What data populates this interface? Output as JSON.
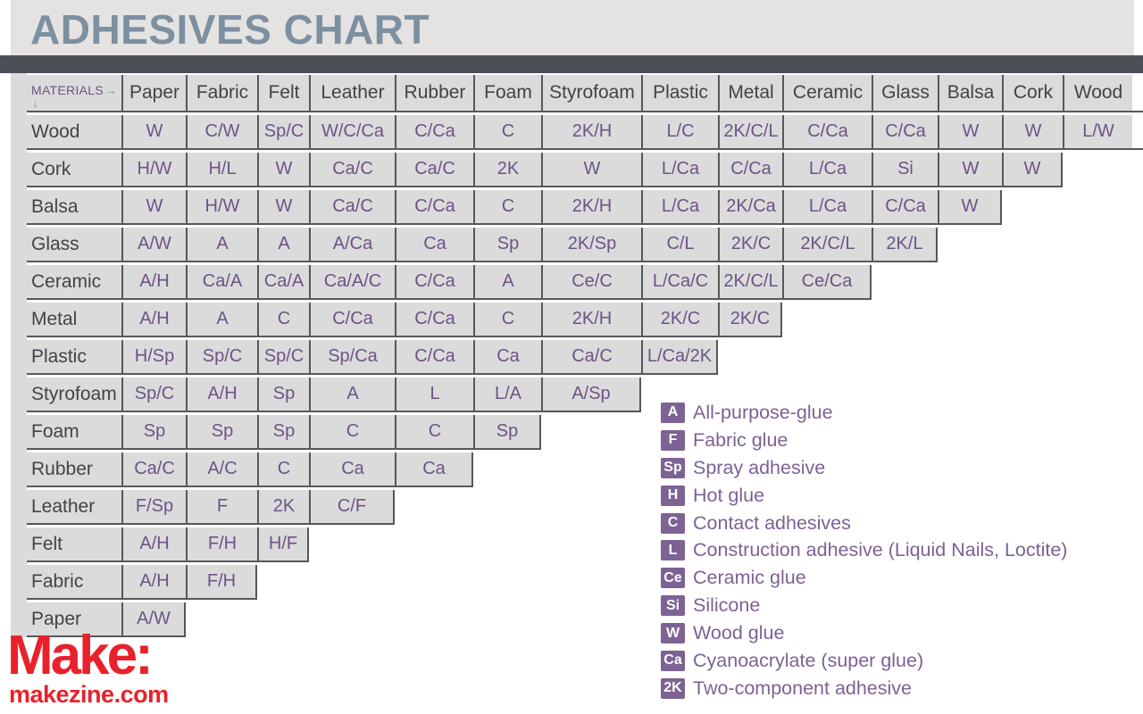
{
  "title": "ADHESIVES CHART",
  "materials_header": {
    "label": "MATERIALS",
    "right_arrow": "→",
    "down_arrow": "↓"
  },
  "chart_data": {
    "type": "table",
    "title": "ADHESIVES CHART",
    "columns": [
      "Paper",
      "Fabric",
      "Felt",
      "Leather",
      "Rubber",
      "Foam",
      "Styrofoam",
      "Plastic",
      "Metal",
      "Ceramic",
      "Glass",
      "Balsa",
      "Cork",
      "Wood"
    ],
    "rows": [
      {
        "material": "Wood",
        "cells": [
          "W",
          "C/W",
          "Sp/C",
          "W/C/Ca",
          "C/Ca",
          "C",
          "2K/H",
          "L/C",
          "2K/C/L",
          "C/Ca",
          "C/Ca",
          "W",
          "W",
          "L/W"
        ]
      },
      {
        "material": "Cork",
        "cells": [
          "H/W",
          "H/L",
          "W",
          "Ca/C",
          "Ca/C",
          "2K",
          "W",
          "L/Ca",
          "C/Ca",
          "L/Ca",
          "Si",
          "W",
          "W"
        ]
      },
      {
        "material": "Balsa",
        "cells": [
          "W",
          "H/W",
          "W",
          "Ca/C",
          "C/Ca",
          "C",
          "2K/H",
          "L/Ca",
          "2K/Ca",
          "L/Ca",
          "C/Ca",
          "W"
        ]
      },
      {
        "material": "Glass",
        "cells": [
          "A/W",
          "A",
          "A",
          "A/Ca",
          "Ca",
          "Sp",
          "2K/Sp",
          "C/L",
          "2K/C",
          "2K/C/L",
          "2K/L"
        ]
      },
      {
        "material": "Ceramic",
        "cells": [
          "A/H",
          "Ca/A",
          "Ca/A",
          "Ca/A/C",
          "C/Ca",
          "A",
          "Ce/C",
          "L/Ca/C",
          "2K/C/L",
          "Ce/Ca"
        ]
      },
      {
        "material": "Metal",
        "cells": [
          "A/H",
          "A",
          "C",
          "C/Ca",
          "C/Ca",
          "C",
          "2K/H",
          "2K/C",
          "2K/C"
        ]
      },
      {
        "material": "Plastic",
        "cells": [
          "H/Sp",
          "Sp/C",
          "Sp/C",
          "Sp/Ca",
          "C/Ca",
          "Ca",
          "Ca/C",
          "L/Ca/2K"
        ]
      },
      {
        "material": "Styrofoam",
        "cells": [
          "Sp/C",
          "A/H",
          "Sp",
          "A",
          "L",
          "L/A",
          "A/Sp"
        ]
      },
      {
        "material": "Foam",
        "cells": [
          "Sp",
          "Sp",
          "Sp",
          "C",
          "C",
          "Sp"
        ]
      },
      {
        "material": "Rubber",
        "cells": [
          "Ca/C",
          "A/C",
          "C",
          "Ca",
          "Ca"
        ]
      },
      {
        "material": "Leather",
        "cells": [
          "F/Sp",
          "F",
          "2K",
          "C/F"
        ]
      },
      {
        "material": "Felt",
        "cells": [
          "A/H",
          "F/H",
          "H/F"
        ]
      },
      {
        "material": "Fabric",
        "cells": [
          "A/H",
          "F/H"
        ]
      },
      {
        "material": "Paper",
        "cells": [
          "A/W"
        ]
      }
    ]
  },
  "legend": {
    "items": [
      {
        "code": "A",
        "label": "All-purpose-glue"
      },
      {
        "code": "F",
        "label": "Fabric glue"
      },
      {
        "code": "Sp",
        "label": "Spray adhesive"
      },
      {
        "code": "H",
        "label": "Hot glue"
      },
      {
        "code": "C",
        "label": "Contact adhesives"
      },
      {
        "code": "L",
        "label": "Construction adhesive (Liquid Nails, Loctite)"
      },
      {
        "code": "Ce",
        "label": "Ceramic glue"
      },
      {
        "code": "Si",
        "label": "Silicone"
      },
      {
        "code": "W",
        "label": "Wood glue"
      },
      {
        "code": "Ca",
        "label": "Cyanoacrylate (super glue)"
      },
      {
        "code": "2K",
        "label": "Two-component adhesive"
      }
    ]
  },
  "logo": {
    "brand": "Make:",
    "site": "makezine.com"
  },
  "colors": {
    "accent_purple": "#6E5387",
    "legend_purple": "#7D6294",
    "title_gray": "#7D90A2",
    "bar_dark": "#4A4E55",
    "cell_gray": "#DBDBDB",
    "grid_dark": "#55585C",
    "header_text": "#404448",
    "band_gray": "#E4E3E1",
    "brand_red": "#E8212B"
  }
}
